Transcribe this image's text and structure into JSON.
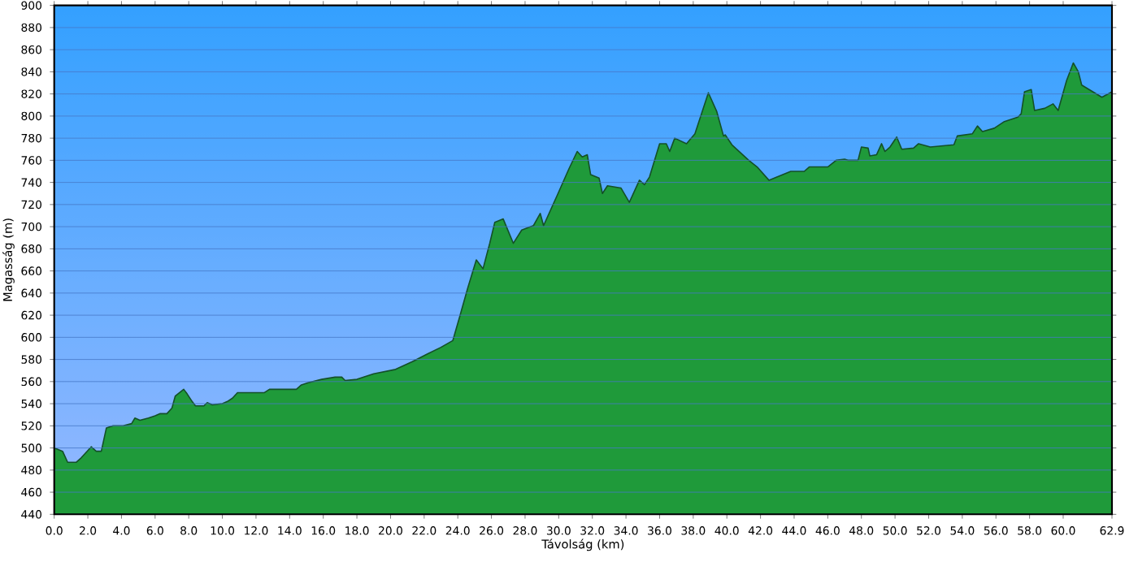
{
  "chart_data": {
    "type": "area",
    "xlabel": "Távolság   (km)",
    "ylabel": "Magasság (m)",
    "xlim": [
      0,
      62.9
    ],
    "ylim": [
      440,
      900
    ],
    "xticks": [
      {
        "value": 0,
        "label": "0.0"
      },
      {
        "value": 2,
        "label": "2.0"
      },
      {
        "value": 4,
        "label": "4.0"
      },
      {
        "value": 6,
        "label": "6.0"
      },
      {
        "value": 8,
        "label": "8.0"
      },
      {
        "value": 10,
        "label": "10.0"
      },
      {
        "value": 12,
        "label": "12.0"
      },
      {
        "value": 14,
        "label": "14.0"
      },
      {
        "value": 16,
        "label": "16.0"
      },
      {
        "value": 18,
        "label": "18.0"
      },
      {
        "value": 20,
        "label": "20.0"
      },
      {
        "value": 22,
        "label": "22.0"
      },
      {
        "value": 24,
        "label": "24.0"
      },
      {
        "value": 26,
        "label": "26.0"
      },
      {
        "value": 28,
        "label": "28.0"
      },
      {
        "value": 30,
        "label": "30.0"
      },
      {
        "value": 32,
        "label": "32.0"
      },
      {
        "value": 34,
        "label": "34.0"
      },
      {
        "value": 36,
        "label": "36.0"
      },
      {
        "value": 38,
        "label": "38.0"
      },
      {
        "value": 40,
        "label": "40.0"
      },
      {
        "value": 42,
        "label": "42.0"
      },
      {
        "value": 44,
        "label": "44.0"
      },
      {
        "value": 46,
        "label": "46.0"
      },
      {
        "value": 48,
        "label": "48.0"
      },
      {
        "value": 50,
        "label": "50.0"
      },
      {
        "value": 52,
        "label": "52.0"
      },
      {
        "value": 54,
        "label": "54.0"
      },
      {
        "value": 56,
        "label": "56.0"
      },
      {
        "value": 58,
        "label": "58.0"
      },
      {
        "value": 60,
        "label": "60.0"
      },
      {
        "value": 62.9,
        "label": "62.9"
      }
    ],
    "yticks": [
      440,
      460,
      480,
      500,
      520,
      540,
      560,
      580,
      600,
      620,
      640,
      660,
      680,
      700,
      720,
      740,
      760,
      780,
      800,
      820,
      840,
      860,
      880,
      900
    ],
    "grid": "y",
    "series": [
      {
        "color": "#1f9a3a",
        "x": [
          0,
          0.5,
          0.8,
          1.3,
          1.6,
          2.2,
          2.5,
          2.8,
          3.1,
          3.5,
          4.1,
          4.6,
          4.8,
          5.1,
          5.6,
          6.0,
          6.3,
          6.7,
          7.0,
          7.2,
          7.7,
          7.9,
          8.2,
          8.4,
          8.9,
          9.1,
          9.4,
          10.0,
          10.3,
          10.6,
          10.9,
          12.5,
          12.8,
          14.4,
          14.7,
          15.1,
          15.9,
          16.7,
          17.1,
          17.3,
          18.0,
          19.0,
          20.3,
          21.3,
          22.2,
          23.0,
          23.7,
          24.1,
          24.6,
          25.1,
          25.5,
          25.9,
          26.2,
          26.7,
          27.3,
          27.8,
          28.5,
          28.9,
          29.1,
          29.9,
          30.6,
          31.1,
          31.4,
          31.7,
          31.9,
          32.4,
          32.6,
          32.9,
          33.7,
          34.2,
          34.8,
          35.1,
          35.4,
          36.0,
          36.4,
          36.6,
          36.9,
          37.6,
          38.1,
          38.9,
          39.4,
          39.8,
          39.9,
          40.3,
          40.8,
          41.3,
          41.8,
          42.5,
          43.0,
          43.8,
          44.6,
          44.9,
          46.0,
          46.5,
          47.0,
          47.2,
          47.8,
          48.0,
          48.4,
          48.5,
          48.9,
          49.2,
          49.4,
          49.7,
          50.1,
          50.4,
          51.1,
          51.4,
          52.1,
          53.5,
          53.7,
          54.6,
          54.9,
          55.2,
          55.9,
          56.5,
          57.3,
          57.5,
          57.7,
          58.1,
          58.3,
          58.9,
          59.4,
          59.7,
          60.2,
          60.6,
          60.9,
          61.1,
          62.3,
          62.8,
          62.9
        ],
        "values": [
          500,
          497,
          487,
          487,
          491,
          501,
          497,
          497,
          518,
          520,
          520,
          522,
          527,
          525,
          527,
          529,
          531,
          531,
          536,
          547,
          553,
          549,
          542,
          538,
          538,
          541,
          539,
          540,
          542,
          545,
          550,
          550,
          553,
          553,
          557,
          559,
          562,
          564,
          564,
          561,
          562,
          567,
          571,
          578,
          585,
          591,
          597,
          618,
          645,
          670,
          662,
          685,
          704,
          707,
          685,
          697,
          701,
          712,
          701,
          728,
          752,
          768,
          763,
          765,
          747,
          744,
          730,
          737,
          735,
          722,
          742,
          738,
          745,
          775,
          775,
          768,
          780,
          775,
          784,
          821,
          804,
          782,
          783,
          774,
          767,
          760,
          754,
          742,
          745,
          750,
          750,
          754,
          754,
          760,
          761,
          760,
          760,
          772,
          771,
          764,
          765,
          775,
          768,
          772,
          781,
          770,
          771,
          775,
          772,
          774,
          782,
          784,
          791,
          786,
          789,
          795,
          799,
          802,
          822,
          824,
          805,
          807,
          811,
          805,
          832,
          848,
          840,
          828,
          817,
          821,
          822
        ]
      }
    ]
  }
}
